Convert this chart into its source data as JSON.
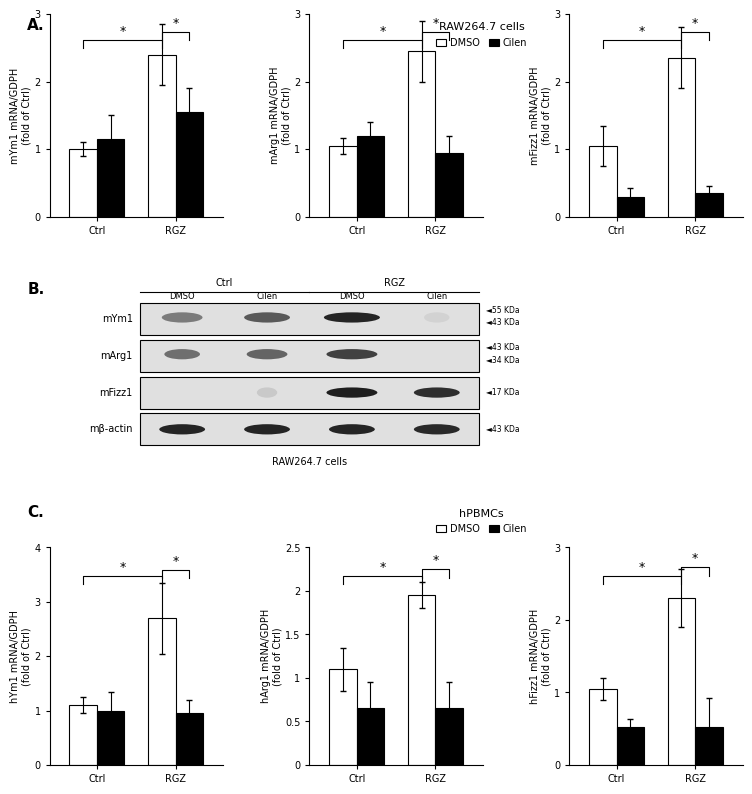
{
  "panel_A_title": "RAW264.7 cells",
  "panel_C_title": "hPBMCs",
  "panel_A": {
    "charts": [
      {
        "ylabel": "mYm1 mRNA/GDPH\n(fold of Ctrl)",
        "ylim": [
          0,
          3
        ],
        "yticks": [
          0,
          1,
          2,
          3
        ],
        "bars": {
          "ctrl_dmso": {
            "val": 1.0,
            "err": 0.1
          },
          "ctrl_cilen": {
            "val": 1.15,
            "err": 0.35
          },
          "rgz_dmso": {
            "val": 2.4,
            "err": 0.45
          },
          "rgz_cilen": {
            "val": 1.55,
            "err": 0.35
          }
        }
      },
      {
        "ylabel": "mArg1 mRNA/GDPH\n(fold of Ctrl)",
        "ylim": [
          0,
          3
        ],
        "yticks": [
          0,
          1,
          2,
          3
        ],
        "bars": {
          "ctrl_dmso": {
            "val": 1.05,
            "err": 0.12
          },
          "ctrl_cilen": {
            "val": 1.2,
            "err": 0.2
          },
          "rgz_dmso": {
            "val": 2.45,
            "err": 0.45
          },
          "rgz_cilen": {
            "val": 0.95,
            "err": 0.25
          }
        }
      },
      {
        "ylabel": "mFizz1 mRNA/GDPH\n(fold of Ctrl)",
        "ylim": [
          0,
          3
        ],
        "yticks": [
          0,
          1,
          2,
          3
        ],
        "bars": {
          "ctrl_dmso": {
            "val": 1.05,
            "err": 0.3
          },
          "ctrl_cilen": {
            "val": 0.3,
            "err": 0.12
          },
          "rgz_dmso": {
            "val": 2.35,
            "err": 0.45
          },
          "rgz_cilen": {
            "val": 0.35,
            "err": 0.1
          }
        }
      }
    ]
  },
  "panel_C": {
    "charts": [
      {
        "ylabel": "hYm1 mRNA/GDPH\n(fold of Ctrl)",
        "ylim": [
          0,
          4
        ],
        "yticks": [
          0,
          1,
          2,
          3,
          4
        ],
        "bars": {
          "ctrl_dmso": {
            "val": 1.1,
            "err": 0.15
          },
          "ctrl_cilen": {
            "val": 1.0,
            "err": 0.35
          },
          "rgz_dmso": {
            "val": 2.7,
            "err": 0.65
          },
          "rgz_cilen": {
            "val": 0.95,
            "err": 0.25
          }
        }
      },
      {
        "ylabel": "hArg1 mRNA/GDPH\n(fold of Ctrl)",
        "ylim": [
          0,
          2.5
        ],
        "yticks": [
          0.0,
          0.5,
          1.0,
          1.5,
          2.0,
          2.5
        ],
        "bars": {
          "ctrl_dmso": {
            "val": 1.1,
            "err": 0.25
          },
          "ctrl_cilen": {
            "val": 0.65,
            "err": 0.3
          },
          "rgz_dmso": {
            "val": 1.95,
            "err": 0.15
          },
          "rgz_cilen": {
            "val": 0.65,
            "err": 0.3
          }
        }
      },
      {
        "ylabel": "hFizz1 mRNA/GDPH\n(fold of Ctrl)",
        "ylim": [
          0,
          3
        ],
        "yticks": [
          0,
          1,
          2,
          3
        ],
        "bars": {
          "ctrl_dmso": {
            "val": 1.05,
            "err": 0.15
          },
          "ctrl_cilen": {
            "val": 0.52,
            "err": 0.12
          },
          "rgz_dmso": {
            "val": 2.3,
            "err": 0.4
          },
          "rgz_cilen": {
            "val": 0.52,
            "err": 0.4
          }
        }
      }
    ]
  },
  "panel_B": {
    "row_labels": [
      "mYm1",
      "mArg1",
      "mFizz1",
      "mβ-actin"
    ],
    "col_labels_sub": [
      "DMSO",
      "Cilen",
      "DMSO",
      "Cilen"
    ],
    "kda_labels": [
      [
        [
          "◄55 KDa",
          0.78
        ],
        [
          "◄43 KDa",
          0.38
        ]
      ],
      [
        [
          "◄43 KDa",
          0.75
        ],
        [
          "◄34 KDa",
          0.35
        ]
      ],
      [
        [
          "◄17 KDa",
          0.5
        ]
      ],
      [
        [
          "◄43 KDa",
          0.5
        ]
      ]
    ]
  },
  "color_dmso": "#ffffff",
  "color_cilen": "#000000",
  "bar_edge": "#000000",
  "bar_width": 0.35,
  "fs_label": 7,
  "fs_tick": 7,
  "fs_title": 8,
  "fs_panel": 11
}
